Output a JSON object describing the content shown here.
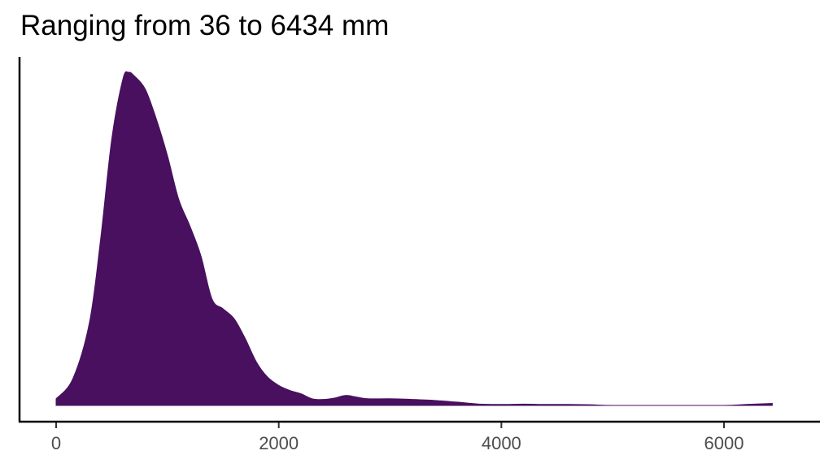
{
  "title": "Ranging from 36 to 6434 mm",
  "colors": {
    "fill": "#48105e",
    "axis": "#000000",
    "tick_label": "#4d4d4d"
  },
  "chart_data": {
    "type": "area",
    "subtype": "density",
    "title": "Ranging from 36 to 6434 mm",
    "xlabel": "",
    "ylabel": "",
    "xlim": [
      -330,
      6800
    ],
    "x_ticks": [
      0,
      2000,
      4000,
      6000
    ],
    "x_tick_labels": [
      "0",
      "2000",
      "4000",
      "6000"
    ],
    "y_ticks": [],
    "grid": false,
    "legend": null,
    "data_range": {
      "min": 36,
      "max": 6434,
      "unit": "mm"
    },
    "series": [
      {
        "name": "density",
        "x": [
          0,
          150,
          300,
          400,
          500,
          600,
          650,
          700,
          800,
          900,
          1000,
          1100,
          1200,
          1300,
          1400,
          1500,
          1600,
          1700,
          1800,
          1900,
          2000,
          2100,
          2200,
          2300,
          2400,
          2500,
          2600,
          2700,
          2800,
          3000,
          3200,
          3400,
          3600,
          3800,
          4000,
          4200,
          4400,
          4600,
          4800,
          5000,
          5500,
          6000,
          6200,
          6434
        ],
        "y": [
          0.02,
          0.08,
          0.25,
          0.5,
          0.8,
          0.98,
          1.0,
          0.99,
          0.95,
          0.86,
          0.75,
          0.62,
          0.54,
          0.45,
          0.32,
          0.29,
          0.26,
          0.2,
          0.13,
          0.085,
          0.06,
          0.045,
          0.035,
          0.02,
          0.018,
          0.022,
          0.03,
          0.025,
          0.02,
          0.02,
          0.018,
          0.015,
          0.01,
          0.004,
          0.003,
          0.004,
          0.003,
          0.003,
          0.002,
          0.0,
          0.0,
          0.0,
          0.003,
          0.006
        ]
      }
    ]
  }
}
